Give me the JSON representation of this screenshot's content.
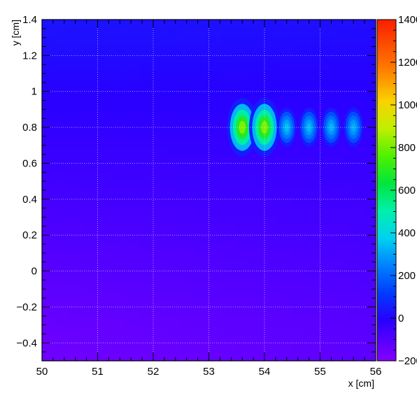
{
  "chart_data": {
    "type": "heatmap",
    "title": "",
    "xlabel": "x [cm]",
    "ylabel": "y [cm]",
    "xlim": [
      50,
      56
    ],
    "ylim": [
      -0.5,
      1.4
    ],
    "x_ticks": [
      "50",
      "51",
      "52",
      "53",
      "54",
      "55",
      "56"
    ],
    "y_ticks": [
      "−0.4",
      "−0.2",
      "0",
      "0.2",
      "0.4",
      "0.6",
      "0.8",
      "1",
      "1.2",
      "1.4"
    ],
    "grid": true,
    "colorbar": {
      "min": -200,
      "max": 1400,
      "tick_labels": [
        "−200",
        "0",
        "200",
        "400",
        "600",
        "800",
        "1000",
        "1200",
        "1400"
      ]
    },
    "background_field": {
      "top_left": 35,
      "top_right": 20,
      "bottom_left": -160,
      "bottom_right": -120
    },
    "hot_spots": [
      {
        "x": 53.6,
        "y": 0.8,
        "peak": 900
      },
      {
        "x": 54.0,
        "y": 0.8,
        "peak": 900
      },
      {
        "x": 54.4,
        "y": 0.8,
        "peak": 380
      },
      {
        "x": 54.8,
        "y": 0.8,
        "peak": 370
      },
      {
        "x": 55.2,
        "y": 0.8,
        "peak": 360
      },
      {
        "x": 55.6,
        "y": 0.8,
        "peak": 350
      }
    ]
  }
}
